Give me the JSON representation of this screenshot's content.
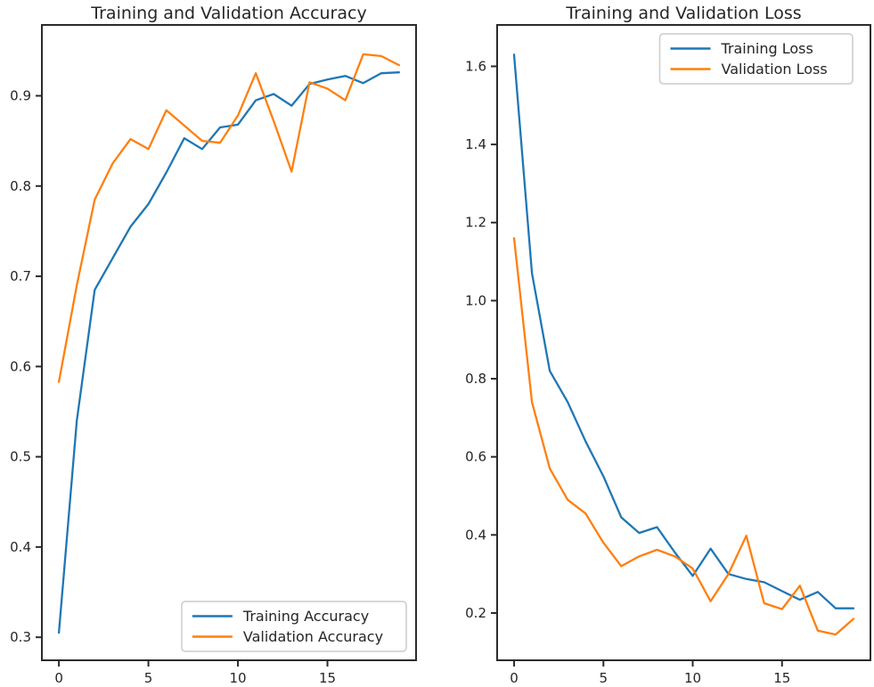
{
  "figure": {
    "background": "#ffffff",
    "text_color": "#262626",
    "spine_color": "#2b2b2b"
  },
  "chart_data": [
    {
      "type": "line",
      "title": "Training and Validation Accuracy",
      "xlabel": "",
      "ylabel": "",
      "x": [
        0,
        1,
        2,
        3,
        4,
        5,
        6,
        7,
        8,
        9,
        10,
        11,
        12,
        13,
        14,
        15,
        16,
        17,
        18,
        19
      ],
      "series": [
        {
          "name": "Training Accuracy",
          "color": "#1f77b4",
          "values": [
            0.305,
            0.54,
            0.685,
            0.72,
            0.755,
            0.78,
            0.815,
            0.853,
            0.841,
            0.865,
            0.868,
            0.895,
            0.902,
            0.889,
            0.913,
            0.918,
            0.922,
            0.914,
            0.925,
            0.926
          ]
        },
        {
          "name": "Validation Accuracy",
          "color": "#ff7f0e",
          "values": [
            0.583,
            0.69,
            0.785,
            0.825,
            0.852,
            0.841,
            0.884,
            0.867,
            0.85,
            0.848,
            0.878,
            0.925,
            0.872,
            0.816,
            0.915,
            0.908,
            0.895,
            0.946,
            0.944,
            0.934
          ]
        }
      ],
      "xticks": [
        0,
        5,
        10,
        15
      ],
      "yticks": [
        0.3,
        0.4,
        0.5,
        0.6,
        0.7,
        0.8,
        0.9
      ],
      "ytick_labels": [
        "0.3",
        "0.4",
        "0.5",
        "0.6",
        "0.7",
        "0.8",
        "0.9"
      ],
      "xlim": [
        -0.95,
        19.95
      ],
      "ylim": [
        0.2745,
        0.9785
      ],
      "grid": false,
      "legend_position": "lower right"
    },
    {
      "type": "line",
      "title": "Training and Validation Loss",
      "xlabel": "",
      "ylabel": "",
      "x": [
        0,
        1,
        2,
        3,
        4,
        5,
        6,
        7,
        8,
        9,
        10,
        11,
        12,
        13,
        14,
        15,
        16,
        17,
        18,
        19
      ],
      "series": [
        {
          "name": "Training Loss",
          "color": "#1f77b4",
          "values": [
            1.63,
            1.07,
            0.82,
            0.74,
            0.64,
            0.55,
            0.445,
            0.405,
            0.42,
            0.355,
            0.295,
            0.365,
            0.3,
            0.287,
            0.279,
            0.256,
            0.234,
            0.254,
            0.212,
            0.212
          ]
        },
        {
          "name": "Validation Loss",
          "color": "#ff7f0e",
          "values": [
            1.16,
            0.74,
            0.57,
            0.49,
            0.455,
            0.38,
            0.32,
            0.345,
            0.362,
            0.345,
            0.314,
            0.23,
            0.3,
            0.398,
            0.225,
            0.21,
            0.27,
            0.155,
            0.145,
            0.185
          ]
        }
      ],
      "xticks": [
        0,
        5,
        10,
        15
      ],
      "yticks": [
        0.2,
        0.4,
        0.6,
        0.8,
        1.0,
        1.2,
        1.4,
        1.6
      ],
      "ytick_labels": [
        "0.2",
        "0.4",
        "0.6",
        "0.8",
        "1.0",
        "1.2",
        "1.4",
        "1.6"
      ],
      "xlim": [
        -0.95,
        19.95
      ],
      "ylim": [
        0.079,
        1.706
      ],
      "grid": false,
      "legend_position": "upper right"
    }
  ]
}
